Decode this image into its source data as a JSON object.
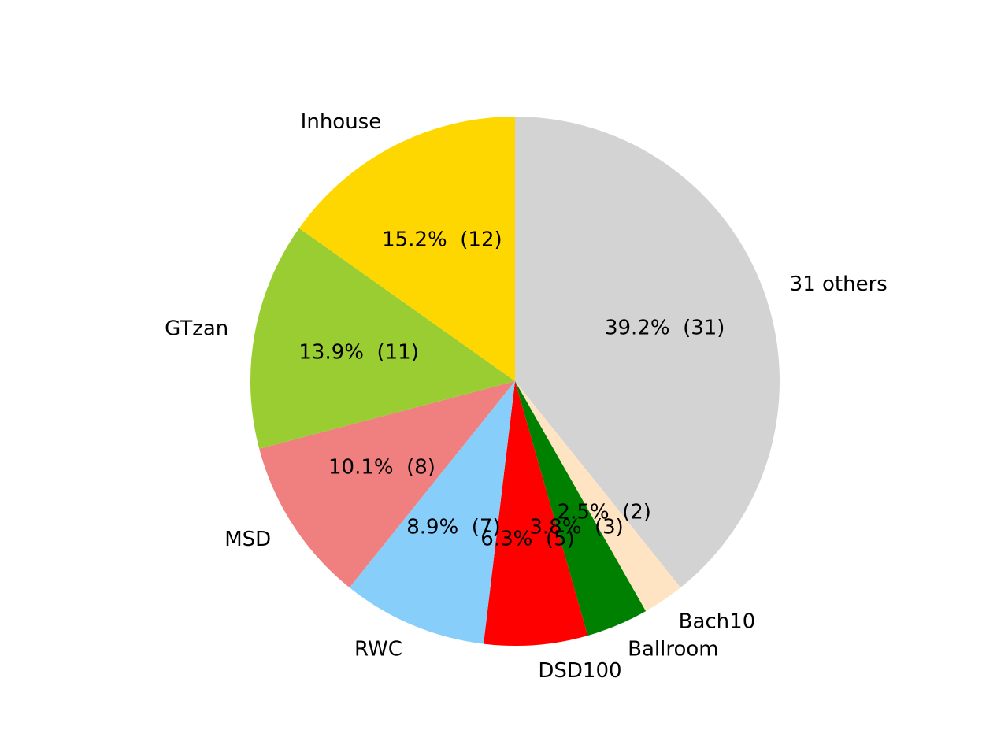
{
  "chart_data": {
    "type": "pie",
    "categories": [
      "31 others",
      "Bach10",
      "Ballroom",
      "DSD100",
      "RWC",
      "MSD",
      "GTzan",
      "Inhouse"
    ],
    "values": [
      31,
      2,
      3,
      5,
      7,
      8,
      11,
      12
    ],
    "value_labels": [
      "39.2%  (31)",
      "2.5%  (2)",
      "3.8%  (3)",
      "6.3%  (5)",
      "8.9%  (7)",
      "10.1%  (8)",
      "13.9%  (11)",
      "15.2%  (12)"
    ],
    "colors": [
      "#d3d3d3",
      "#ffe4c4",
      "#008000",
      "#ff0000",
      "#87cefa",
      "#f08080",
      "#9acd32",
      "#ffd700"
    ],
    "start_angle": 90,
    "clockwise": true
  }
}
